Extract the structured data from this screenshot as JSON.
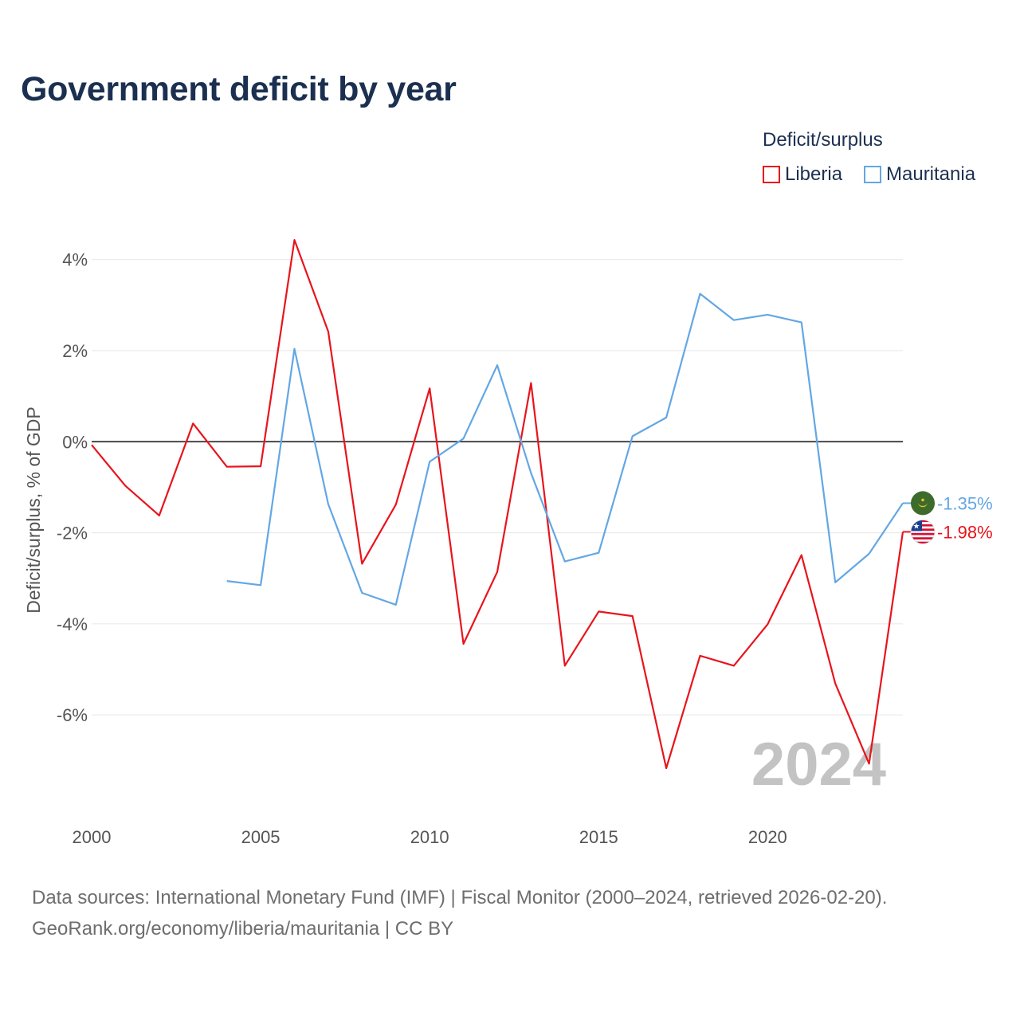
{
  "title": "Government deficit by year",
  "legend": {
    "title": "Deficit/surplus",
    "items": [
      {
        "name": "Liberia",
        "color": "#e8141c"
      },
      {
        "name": "Mauritania",
        "color": "#63a7e4"
      }
    ]
  },
  "year_watermark": "2024",
  "source": {
    "line1": "Data sources: International Monetary Fund (IMF) | Fiscal Monitor (2000–2024, retrieved 2026-02-20).",
    "line2": "GeoRank.org/economy/liberia/mauritania | CC BY"
  },
  "chart_data": {
    "type": "line",
    "title": "Government deficit by year",
    "xlabel": "",
    "ylabel": "Deficit/surplus, % of GDP",
    "xlim": [
      2000,
      2024
    ],
    "ylim": [
      -7.8,
      4.8
    ],
    "x_ticks": [
      {
        "value": 2000,
        "label": "2000"
      },
      {
        "value": 2005,
        "label": "2005"
      },
      {
        "value": 2010,
        "label": "2010"
      },
      {
        "value": 2015,
        "label": "2015"
      },
      {
        "value": 2020,
        "label": "2020"
      }
    ],
    "y_ticks": [
      {
        "value": 4,
        "label": "4%"
      },
      {
        "value": 2,
        "label": "2%"
      },
      {
        "value": 0,
        "label": "0%"
      },
      {
        "value": -2,
        "label": "-2%"
      },
      {
        "value": -4,
        "label": "-4%"
      },
      {
        "value": -6,
        "label": "-6%"
      }
    ],
    "grid": true,
    "series": [
      {
        "name": "Liberia",
        "color": "#e8141c",
        "end_label": "-1.98%",
        "flag_icon": "liberia-flag-icon",
        "x": [
          2000,
          2001,
          2002,
          2003,
          2004,
          2005,
          2006,
          2007,
          2008,
          2009,
          2010,
          2011,
          2012,
          2013,
          2014,
          2015,
          2016,
          2017,
          2018,
          2019,
          2020,
          2021,
          2022,
          2023,
          2024
        ],
        "values": [
          -0.07,
          -0.97,
          -1.62,
          0.4,
          -0.55,
          -0.54,
          4.43,
          2.42,
          -2.68,
          -1.38,
          1.17,
          -4.44,
          -2.86,
          1.29,
          -4.92,
          -3.73,
          -3.83,
          -7.17,
          -4.7,
          -4.92,
          -4.01,
          -2.49,
          -5.31,
          -7.07,
          -1.98
        ]
      },
      {
        "name": "Mauritania",
        "color": "#63a7e4",
        "end_label": "-1.35%",
        "flag_icon": "mauritania-flag-icon",
        "x": [
          2004,
          2005,
          2006,
          2007,
          2008,
          2009,
          2010,
          2011,
          2012,
          2013,
          2014,
          2015,
          2016,
          2017,
          2018,
          2019,
          2020,
          2021,
          2022,
          2023,
          2024
        ],
        "values": [
          -3.06,
          -3.15,
          2.04,
          -1.37,
          -3.32,
          -3.58,
          -0.44,
          0.07,
          1.68,
          -0.69,
          -2.63,
          -2.44,
          0.12,
          0.53,
          3.25,
          2.67,
          2.79,
          2.62,
          -3.09,
          -2.46,
          -1.35
        ]
      }
    ]
  }
}
